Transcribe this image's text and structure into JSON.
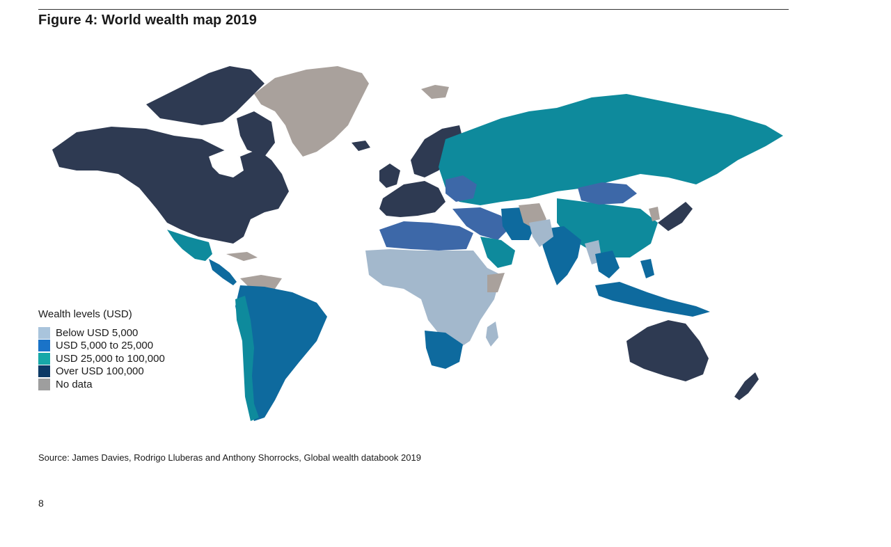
{
  "figure": {
    "title": "Figure 4: World wealth map 2019"
  },
  "legend": {
    "title": "Wealth levels (USD)",
    "items": [
      {
        "key": "low",
        "label": "Below USD 5,000",
        "color": "#a9c4dc"
      },
      {
        "key": "lowmid",
        "label": "USD 5,000 to 25,000",
        "color": "#1a73c8"
      },
      {
        "key": "highmid",
        "label": "USD 25,000 to 100,000",
        "color": "#17a8a8"
      },
      {
        "key": "high",
        "label": "Over USD 100,000",
        "color": "#0d3a66"
      },
      {
        "key": "nodata",
        "label": "No data",
        "color": "#9e9e9e"
      }
    ]
  },
  "map_colors": {
    "over_100k": "#2e3a52",
    "between_25k_100k": "#0e8a9c",
    "between_5k_25k": "#0e6a9e",
    "between_5k_25k_alt": "#3d68a8",
    "below_5k": "#a3b8cc",
    "no_data": "#a9a19c"
  },
  "source": "Source: James Davies, Rodrigo Lluberas and Anthony Shorrocks, Global wealth databook 2019",
  "page_number": "8"
}
